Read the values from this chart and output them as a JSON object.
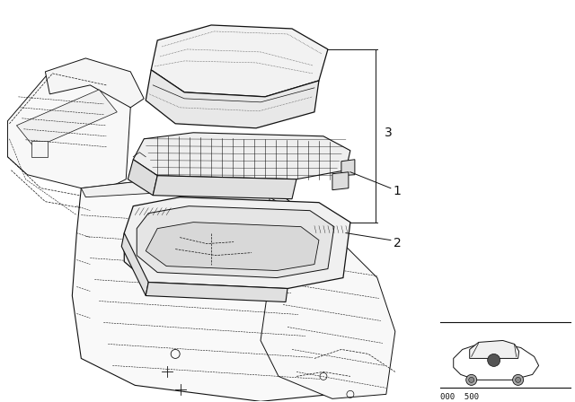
{
  "background_color": "#ffffff",
  "line_color": "#111111",
  "fig_width": 6.4,
  "fig_height": 4.48,
  "dpi": 100,
  "part_label_3": "3",
  "part_label_1": "1",
  "part_label_2": "2",
  "part_number_text": "000  500"
}
